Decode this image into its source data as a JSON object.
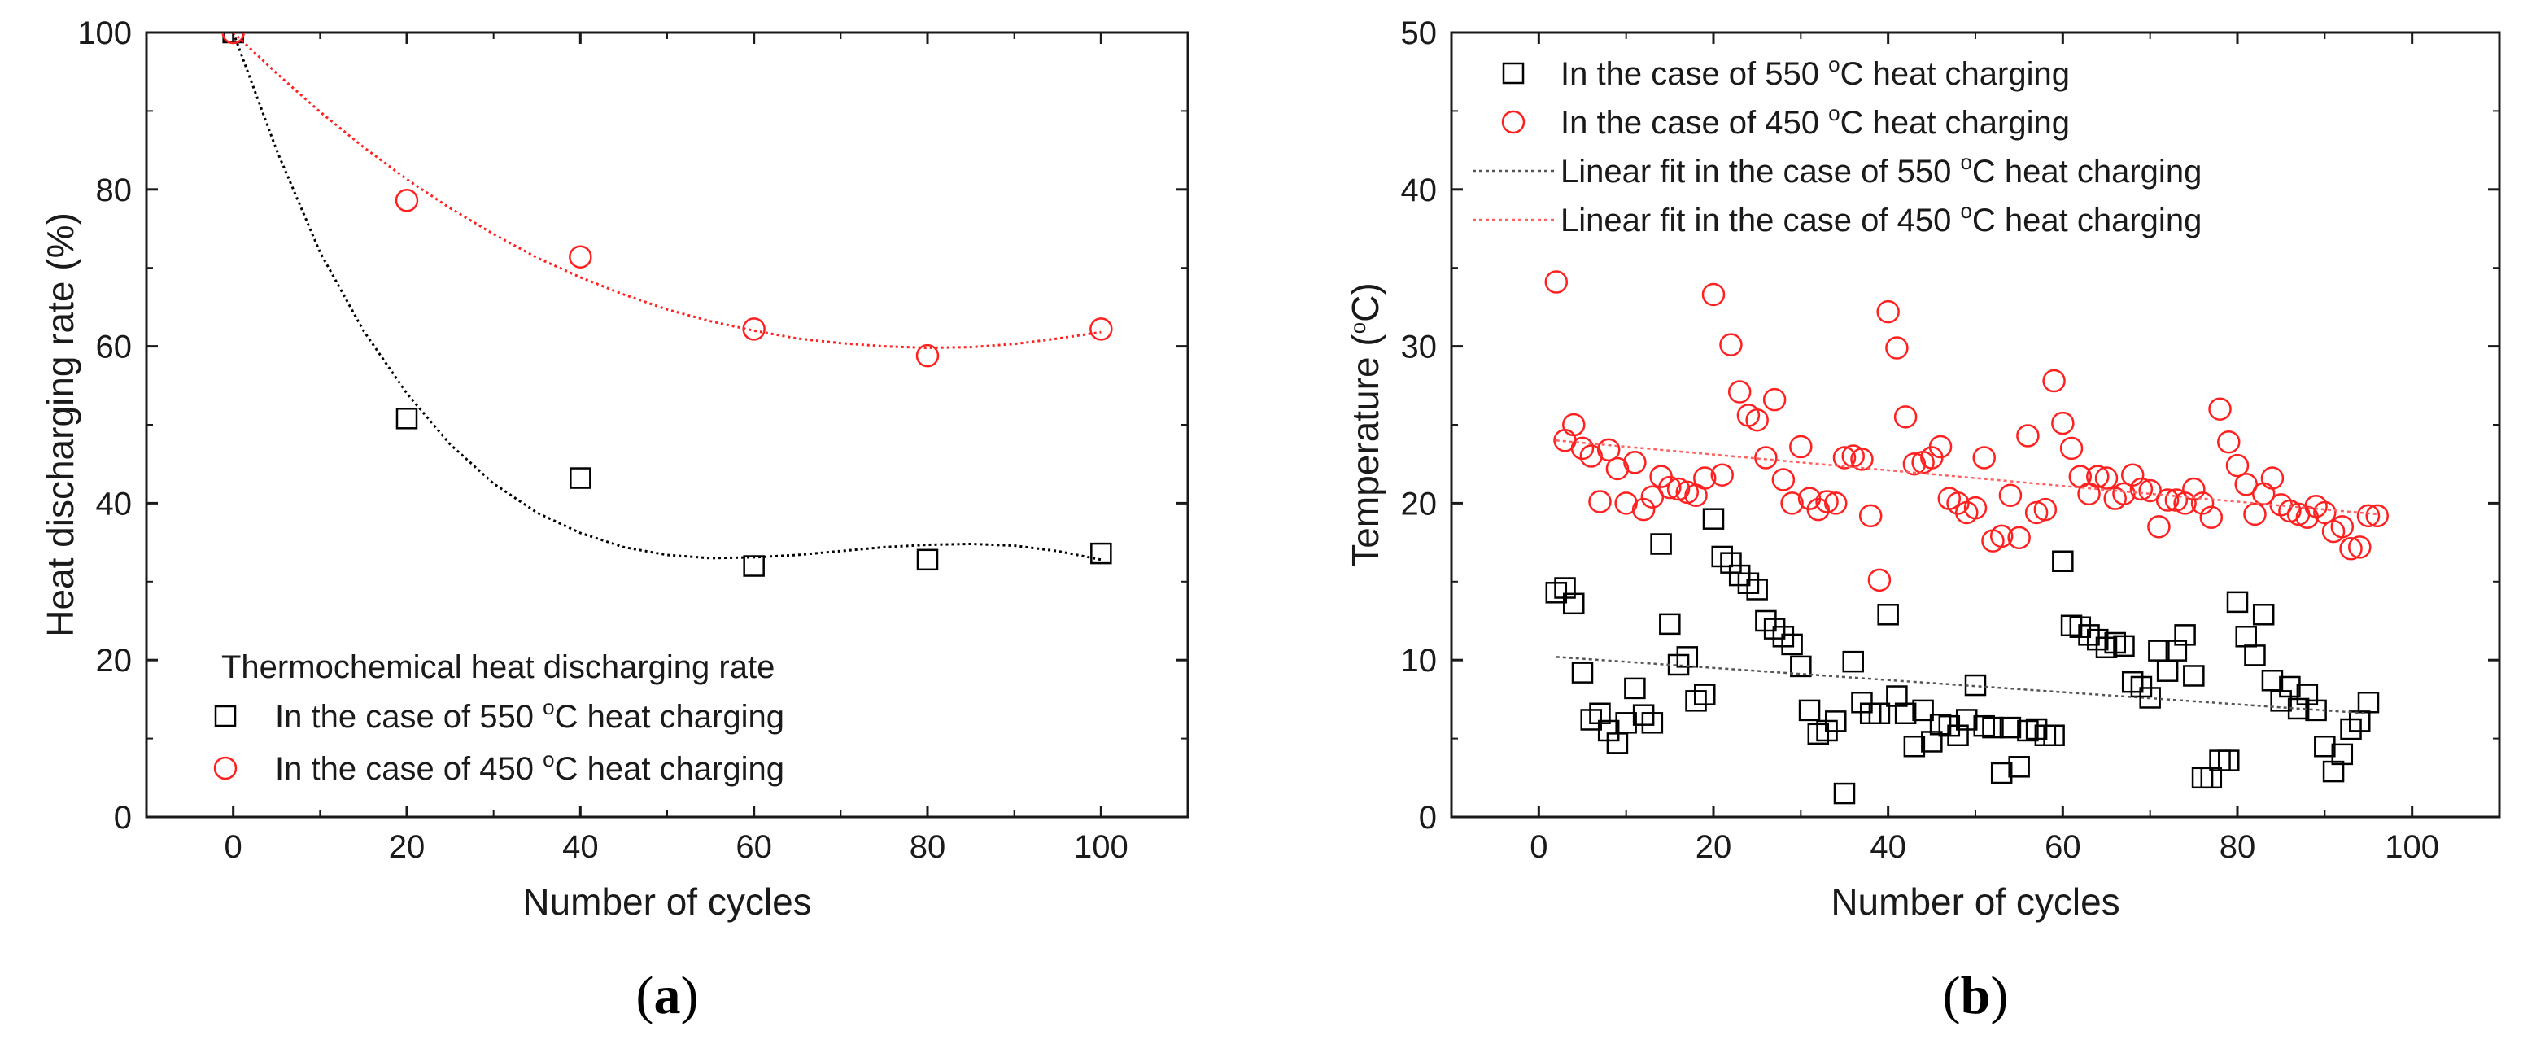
{
  "chart_data": [
    {
      "type": "scatter",
      "panel": "(a)",
      "panel_letter": "a",
      "xlabel": "Number of cycles",
      "ylabel": "Heat discharging rate (%)",
      "xlim": [
        -10,
        110
      ],
      "ylim": [
        0,
        100
      ],
      "xticks": [
        0,
        20,
        40,
        60,
        80,
        100
      ],
      "yticks": [
        0,
        20,
        40,
        60,
        80,
        100
      ],
      "legend": {
        "placement": "bottom-left",
        "title": "Thermochemical heat discharging rate"
      },
      "series": [
        {
          "name": "In the case of 550 °C heat charging",
          "label_prefix": "In the case of 550 ",
          "label_sup": "o",
          "label_suffix": "C heat charging",
          "marker": "square",
          "color": "#000000",
          "x": [
            0,
            20,
            40,
            60,
            80,
            100
          ],
          "y": [
            100,
            50.8,
            43.2,
            32.0,
            32.8,
            33.6
          ],
          "fit": {
            "style": "dotted",
            "x": [
              0,
              5,
              10,
              15,
              20,
              25,
              30,
              35,
              40,
              45,
              50,
              55,
              60,
              65,
              70,
              75,
              80,
              85,
              90,
              95,
              100
            ],
            "y": [
              100,
              85,
              72,
              62,
              54,
              47.5,
              42.5,
              38.8,
              36.2,
              34.4,
              33.4,
              33.0,
              33.1,
              33.4,
              33.9,
              34.4,
              34.7,
              34.8,
              34.6,
              33.9,
              32.8
            ]
          }
        },
        {
          "name": "In the case of 450 °C heat charging",
          "label_prefix": "In the case of 450 ",
          "label_sup": "o",
          "label_suffix": "C heat charging",
          "marker": "circle",
          "color": "#ff2020",
          "x": [
            0,
            20,
            40,
            60,
            80,
            100
          ],
          "y": [
            100,
            78.6,
            71.4,
            62.2,
            58.8,
            62.2
          ],
          "fit": {
            "style": "dotted",
            "x": [
              0,
              5,
              10,
              15,
              20,
              25,
              30,
              35,
              40,
              45,
              50,
              55,
              60,
              65,
              70,
              75,
              80,
              85,
              90,
              95,
              100
            ],
            "y": [
              100,
              94.8,
              89.9,
              85.4,
              81.3,
              77.6,
              74.3,
              71.3,
              68.8,
              66.6,
              64.7,
              63.2,
              62.0,
              61.0,
              60.4,
              60.0,
              59.8,
              59.9,
              60.3,
              61.0,
              61.8
            ]
          }
        }
      ]
    },
    {
      "type": "scatter",
      "panel": "(b)",
      "panel_letter": "b",
      "xlabel": "Number of cycles",
      "ylabel": "Temperature (°C)",
      "ylabel_prefix": "Temperature (",
      "ylabel_sup": "o",
      "ylabel_suffix": "C)",
      "xlim": [
        -10,
        110
      ],
      "ylim": [
        0,
        50
      ],
      "xticks": [
        0,
        20,
        40,
        60,
        80,
        100
      ],
      "yticks": [
        0,
        10,
        20,
        30,
        40,
        50
      ],
      "legend": {
        "placement": "top-left"
      },
      "series": [
        {
          "name": "In the case of 550 °C heat charging",
          "label_prefix": "In the case of 550 ",
          "label_sup": "o",
          "label_suffix": "C heat charging",
          "marker": "square",
          "color": "#000000",
          "x": [
            2,
            3,
            4,
            5,
            6,
            7,
            8,
            9,
            10,
            11,
            12,
            13,
            14,
            15,
            16,
            17,
            18,
            19,
            20,
            21,
            22,
            23,
            24,
            25,
            26,
            27,
            28,
            29,
            30,
            31,
            32,
            33,
            34,
            35,
            36,
            37,
            38,
            39,
            40,
            41,
            42,
            43,
            44,
            45,
            46,
            47,
            48,
            49,
            50,
            51,
            52,
            53,
            54,
            55,
            56,
            57,
            58,
            59,
            60,
            61,
            62,
            63,
            64,
            65,
            66,
            67,
            68,
            69,
            70,
            71,
            72,
            73,
            74,
            75,
            76,
            77,
            78,
            79,
            80,
            81,
            82,
            83,
            84,
            85,
            86,
            87,
            88,
            89,
            90,
            91,
            92,
            93,
            94,
            95
          ],
          "y": [
            14.3,
            14.6,
            13.6,
            9.2,
            6.2,
            6.6,
            5.5,
            4.7,
            6.0,
            8.2,
            6.5,
            6.0,
            17.4,
            12.3,
            9.7,
            10.2,
            7.4,
            7.8,
            19.0,
            16.6,
            16.2,
            15.4,
            14.9,
            14.5,
            12.5,
            12.0,
            11.5,
            11.0,
            9.6,
            6.8,
            5.3,
            5.5,
            6.1,
            1.5,
            9.9,
            7.3,
            6.6,
            6.6,
            12.9,
            7.7,
            6.6,
            4.5,
            6.8,
            4.8,
            5.9,
            5.8,
            5.2,
            6.2,
            8.4,
            5.8,
            5.7,
            2.8,
            5.7,
            3.2,
            5.5,
            5.6,
            5.2,
            5.2,
            16.3,
            12.2,
            12.1,
            11.6,
            11.3,
            10.8,
            11.1,
            10.9,
            8.6,
            8.3,
            7.6,
            10.6,
            9.3,
            10.6,
            11.6,
            9.0,
            2.5,
            2.5,
            3.6,
            3.6,
            13.7,
            11.5,
            10.3,
            12.9,
            8.7,
            7.4,
            8.3,
            6.9,
            7.8,
            6.8,
            4.5,
            2.9,
            4.0,
            5.6,
            6.1,
            7.3
          ]
        },
        {
          "name": "In the case of 450 °C heat charging",
          "label_prefix": "In the case of 450 ",
          "label_sup": "o",
          "label_suffix": "C heat charging",
          "marker": "circle",
          "color": "#ff2020",
          "x": [
            2,
            3,
            4,
            5,
            6,
            7,
            8,
            9,
            10,
            11,
            12,
            13,
            14,
            15,
            16,
            17,
            18,
            19,
            20,
            21,
            22,
            23,
            24,
            25,
            26,
            27,
            28,
            29,
            30,
            31,
            32,
            33,
            34,
            35,
            36,
            37,
            38,
            39,
            40,
            41,
            42,
            43,
            44,
            45,
            46,
            47,
            48,
            49,
            50,
            51,
            52,
            53,
            54,
            55,
            56,
            57,
            58,
            59,
            60,
            61,
            62,
            63,
            64,
            65,
            66,
            67,
            68,
            69,
            70,
            71,
            72,
            73,
            74,
            75,
            76,
            77,
            78,
            79,
            80,
            81,
            82,
            83,
            84,
            85,
            86,
            87,
            88,
            89,
            90,
            91,
            92,
            93,
            94,
            95,
            96
          ],
          "y": [
            34.1,
            24.0,
            25.0,
            23.5,
            23.0,
            20.1,
            23.4,
            22.2,
            20.0,
            22.6,
            19.6,
            20.4,
            21.7,
            21.0,
            20.9,
            20.7,
            20.5,
            21.6,
            33.3,
            21.8,
            30.1,
            27.1,
            25.6,
            25.3,
            22.9,
            26.6,
            21.5,
            20.0,
            23.6,
            20.3,
            19.6,
            20.1,
            20.0,
            22.9,
            23.0,
            22.8,
            19.2,
            15.1,
            32.2,
            29.9,
            25.5,
            22.5,
            22.6,
            22.9,
            23.6,
            20.3,
            20.0,
            19.4,
            19.7,
            22.9,
            17.6,
            17.9,
            20.5,
            17.8,
            24.3,
            19.4,
            19.6,
            27.8,
            25.1,
            23.5,
            21.7,
            20.6,
            21.7,
            21.6,
            20.3,
            20.6,
            21.8,
            20.9,
            20.8,
            18.5,
            20.2,
            20.2,
            20.0,
            20.9,
            20.0,
            19.1,
            26.0,
            23.9,
            22.4,
            21.2,
            19.3,
            20.6,
            21.6,
            19.9,
            19.5,
            19.3,
            19.1,
            19.8,
            19.4,
            18.2,
            18.5,
            17.1,
            17.2,
            19.2,
            19.2
          ]
        },
        {
          "name": "Linear fit in the case of 550 °C heat charging",
          "label_prefix": "Linear fit in the case of 550 ",
          "label_sup": "o",
          "label_suffix": "C heat charging",
          "marker": "dashed-line",
          "color": "#555555",
          "x": [
            2,
            95
          ],
          "y": [
            10.2,
            6.6
          ]
        },
        {
          "name": "Linear fit in the case of 450 °C heat charging",
          "label_prefix": "Linear fit in the case of 450 ",
          "label_sup": "o",
          "label_suffix": "C heat charging",
          "marker": "dashed-line",
          "color": "#ff6060",
          "x": [
            2,
            96
          ],
          "y": [
            24.0,
            19.3
          ]
        }
      ]
    }
  ]
}
